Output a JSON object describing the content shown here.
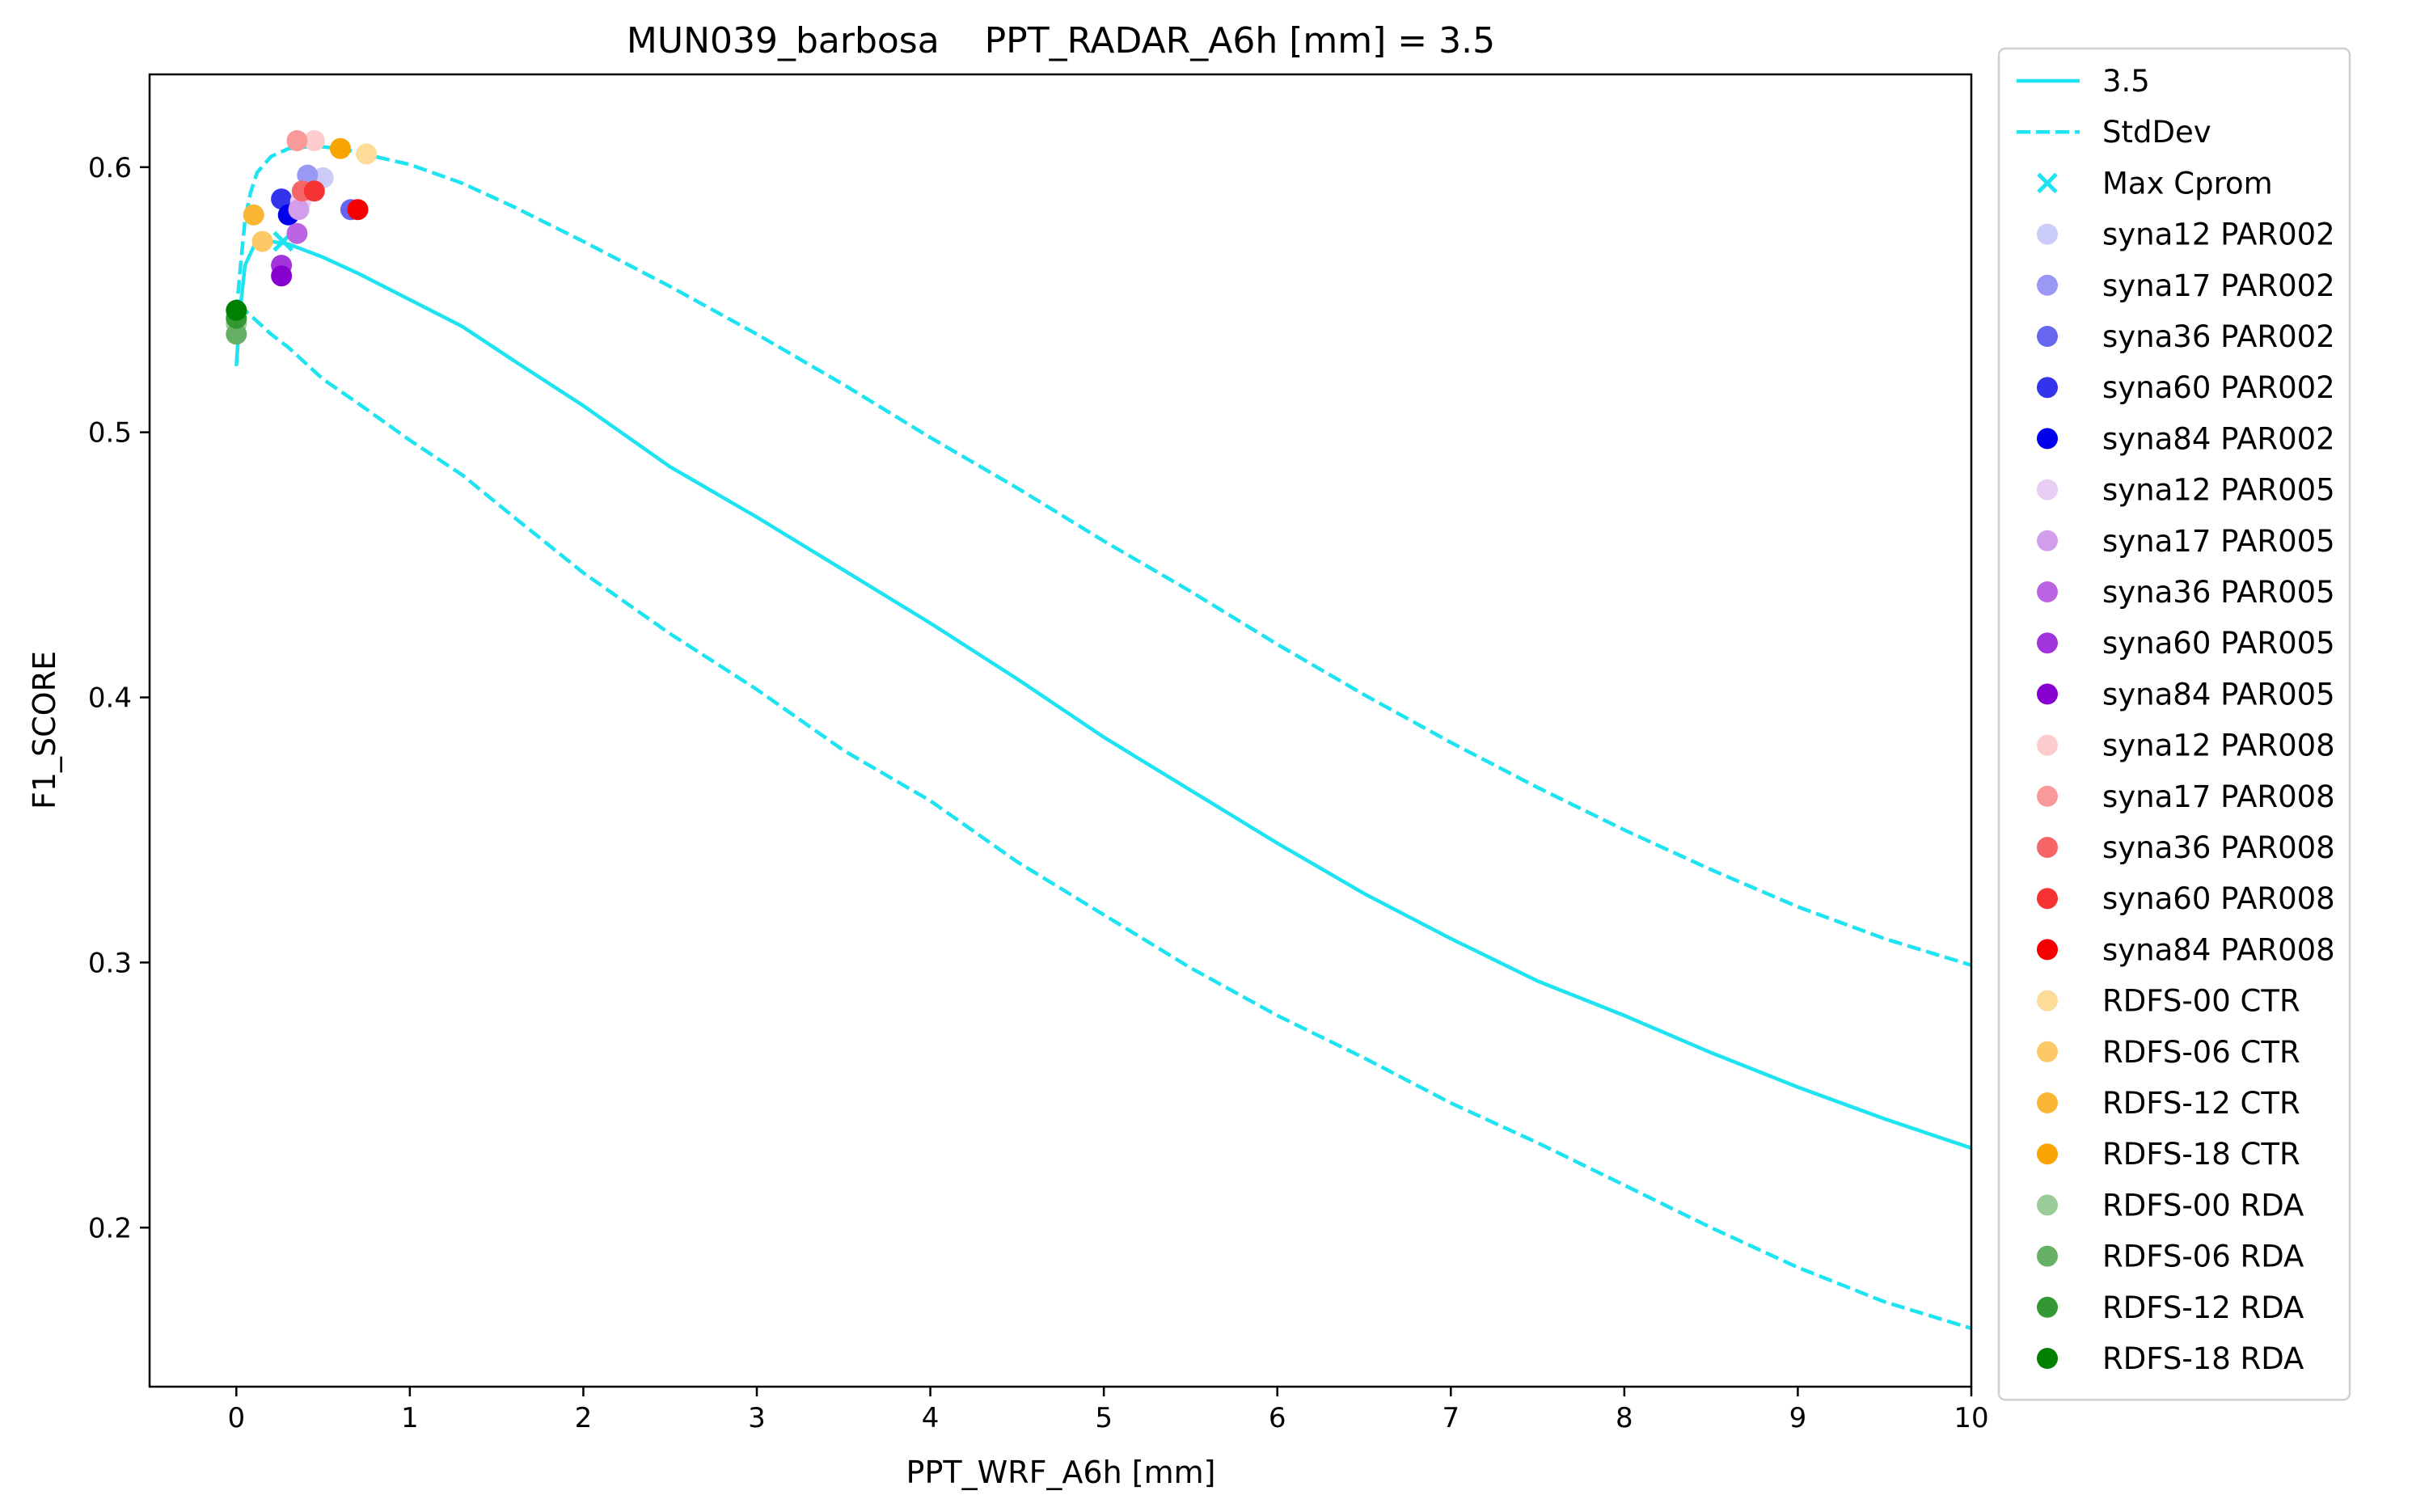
{
  "chart_data": {
    "type": "line",
    "title": "MUN039_barbosa    PPT_RADAR_A6h [mm] = 3.5",
    "xlabel": "PPT_WRF_A6h [mm]",
    "ylabel": "F1_SCORE",
    "xlim": [
      -0.5,
      10
    ],
    "ylim": [
      0.14,
      0.635
    ],
    "x_ticks": [
      0,
      1,
      2,
      3,
      4,
      5,
      6,
      7,
      8,
      9,
      10
    ],
    "y_ticks": [
      0.2,
      0.3,
      0.4,
      0.5,
      0.6
    ],
    "x_tick_labels": [
      "0",
      "1",
      "2",
      "3",
      "4",
      "5",
      "6",
      "7",
      "8",
      "9",
      "10"
    ],
    "y_tick_labels": [
      "0.2",
      "0.3",
      "0.4",
      "0.5",
      "0.6"
    ],
    "grid": false,
    "legend_position": "outside-right",
    "line_color": "#1ee3f0",
    "series": [
      {
        "name": "3.5",
        "style": "solid",
        "x": [
          0.0,
          0.02,
          0.05,
          0.1,
          0.15,
          0.2,
          0.3,
          0.5,
          0.7,
          1.0,
          1.3,
          1.6,
          2.0,
          2.5,
          3.0,
          3.5,
          4.0,
          4.5,
          5.0,
          5.5,
          6.0,
          6.5,
          7.0,
          7.5,
          8.0,
          8.5,
          9.0,
          9.5,
          10.0
        ],
        "y": [
          0.525,
          0.545,
          0.563,
          0.57,
          0.572,
          0.572,
          0.571,
          0.566,
          0.56,
          0.55,
          0.54,
          0.527,
          0.51,
          0.487,
          0.468,
          0.448,
          0.428,
          0.407,
          0.385,
          0.365,
          0.345,
          0.326,
          0.309,
          0.293,
          0.28,
          0.266,
          0.253,
          0.241,
          0.23
        ]
      },
      {
        "name": "StdDev",
        "style": "dashed",
        "x": [
          0.0,
          0.02,
          0.05,
          0.08,
          0.12,
          0.2,
          0.3,
          0.45,
          0.6,
          0.8,
          1.0,
          1.3,
          1.6,
          2.0,
          2.5,
          3.0,
          3.5,
          4.0,
          4.5,
          5.0,
          5.5,
          6.0,
          6.5,
          7.0,
          7.5,
          8.0,
          8.5,
          9.0,
          9.5,
          10.0
        ],
        "y": [
          0.545,
          0.56,
          0.58,
          0.59,
          0.598,
          0.604,
          0.607,
          0.608,
          0.607,
          0.604,
          0.601,
          0.594,
          0.585,
          0.572,
          0.555,
          0.537,
          0.518,
          0.498,
          0.479,
          0.459,
          0.44,
          0.42,
          0.401,
          0.383,
          0.366,
          0.35,
          0.335,
          0.321,
          0.309,
          0.299
        ]
      },
      {
        "name": "StdDev",
        "style": "dashed",
        "x": [
          0.0,
          0.05,
          0.1,
          0.2,
          0.3,
          0.5,
          0.7,
          1.0,
          1.3,
          1.6,
          2.0,
          2.5,
          3.0,
          3.5,
          4.0,
          4.5,
          5.0,
          5.5,
          6.0,
          6.5,
          7.0,
          7.5,
          8.0,
          8.5,
          9.0,
          9.5,
          10.0
        ],
        "y": [
          0.547,
          0.546,
          0.543,
          0.537,
          0.532,
          0.52,
          0.511,
          0.497,
          0.484,
          0.468,
          0.447,
          0.424,
          0.403,
          0.38,
          0.361,
          0.338,
          0.318,
          0.298,
          0.28,
          0.264,
          0.247,
          0.232,
          0.216,
          0.2,
          0.185,
          0.172,
          0.162
        ]
      }
    ],
    "max_marker": {
      "name": "Max Cprom",
      "x": 0.27,
      "y": 0.572,
      "color": "#1ee3f0"
    },
    "points": [
      {
        "name": "syna12 PAR002",
        "color": "#ccccf8",
        "x": 0.5,
        "y": 0.596
      },
      {
        "name": "syna17 PAR002",
        "color": "#9999f5",
        "x": 0.41,
        "y": 0.597
      },
      {
        "name": "syna36 PAR002",
        "color": "#6666ef",
        "x": 0.66,
        "y": 0.584
      },
      {
        "name": "syna60 PAR002",
        "color": "#3333ec",
        "x": 0.26,
        "y": 0.588
      },
      {
        "name": "syna84 PAR002",
        "color": "#0000ec",
        "x": 0.3,
        "y": 0.582
      },
      {
        "name": "syna12 PAR005",
        "color": "#e8cdf5",
        "x": 0.37,
        "y": 0.587
      },
      {
        "name": "syna17 PAR005",
        "color": "#d39ded",
        "x": 0.36,
        "y": 0.584
      },
      {
        "name": "syna36 PAR005",
        "color": "#bb64e3",
        "x": 0.35,
        "y": 0.575
      },
      {
        "name": "syna60 PAR005",
        "color": "#a135db",
        "x": 0.26,
        "y": 0.563
      },
      {
        "name": "syna84 PAR005",
        "color": "#8800cf",
        "x": 0.26,
        "y": 0.559
      },
      {
        "name": "syna12 PAR008",
        "color": "#fdcccc",
        "x": 0.45,
        "y": 0.61
      },
      {
        "name": "syna17 PAR008",
        "color": "#f99999",
        "x": 0.35,
        "y": 0.61
      },
      {
        "name": "syna36 PAR008",
        "color": "#f76666",
        "x": 0.38,
        "y": 0.591
      },
      {
        "name": "syna60 PAR008",
        "color": "#f53333",
        "x": 0.45,
        "y": 0.591
      },
      {
        "name": "syna84 PAR008",
        "color": "#f50000",
        "x": 0.7,
        "y": 0.584
      },
      {
        "name": "RDFS-00 CTR",
        "color": "#fddb99",
        "x": 0.75,
        "y": 0.605
      },
      {
        "name": "RDFS-06 CTR",
        "color": "#fcc966",
        "x": 0.15,
        "y": 0.572
      },
      {
        "name": "RDFS-12 CTR",
        "color": "#fbb633",
        "x": 0.1,
        "y": 0.582
      },
      {
        "name": "RDFS-18 CTR",
        "color": "#f9a400",
        "x": 0.6,
        "y": 0.607
      },
      {
        "name": "RDFS-00 RDA",
        "color": "#99cc99",
        "x": 0.0,
        "y": 0.541
      },
      {
        "name": "RDFS-06 RDA",
        "color": "#66b066",
        "x": 0.0,
        "y": 0.537
      },
      {
        "name": "RDFS-12 RDA",
        "color": "#339833",
        "x": 0.0,
        "y": 0.543
      },
      {
        "name": "RDFS-18 RDA",
        "color": "#008000",
        "x": 0.0,
        "y": 0.546
      }
    ]
  }
}
